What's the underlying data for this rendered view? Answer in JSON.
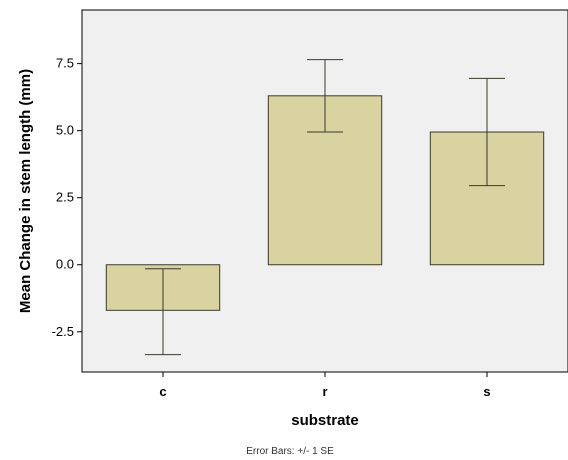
{
  "chart_data": {
    "type": "bar",
    "categories": [
      "c",
      "r",
      "s"
    ],
    "values": [
      -1.7,
      6.3,
      4.95
    ],
    "error_bars": {
      "lower": [
        -3.35,
        4.95,
        2.95
      ],
      "upper": [
        -0.15,
        7.65,
        6.95
      ]
    },
    "xlabel": "substrate",
    "ylabel": "Mean Change in stem length (mm)",
    "yticks": [
      -2.5,
      0.0,
      2.5,
      5.0,
      7.5
    ],
    "ytick_labels": [
      "-2.5",
      "0.0",
      "2.5",
      "5.0",
      "7.5"
    ],
    "ylim": [
      -4.0,
      9.5
    ],
    "footnote": "Error Bars: +/- 1 SE",
    "grid": false
  },
  "colors": {
    "bar_fill": "#d8d3a0",
    "bar_stroke": "#3a3a2a",
    "plot_background": "#f0f0f0",
    "axis": "#000000"
  }
}
